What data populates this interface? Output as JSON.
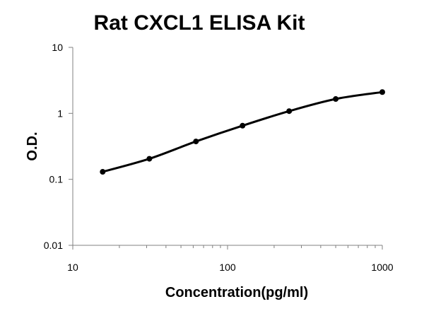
{
  "chart_data": {
    "type": "line",
    "title": "Rat CXCL1 ELISA Kit",
    "xlabel": "Concentration(pg/ml)",
    "ylabel": "O.D.",
    "x_scale": "log",
    "y_scale": "log",
    "xlim": [
      10,
      1000
    ],
    "ylim": [
      0.01,
      10
    ],
    "x_ticks": [
      "10",
      "100",
      "1000"
    ],
    "y_ticks": [
      "0.01",
      "0.1",
      "1",
      "10"
    ],
    "grid": false,
    "legend": "none",
    "series": [
      {
        "x": [
          15.6,
          31.25,
          62.5,
          125,
          250,
          500,
          1000
        ],
        "y": [
          0.13,
          0.205,
          0.375,
          0.65,
          1.08,
          1.65,
          2.1
        ],
        "color": "#000000",
        "marker": "circle"
      }
    ]
  }
}
